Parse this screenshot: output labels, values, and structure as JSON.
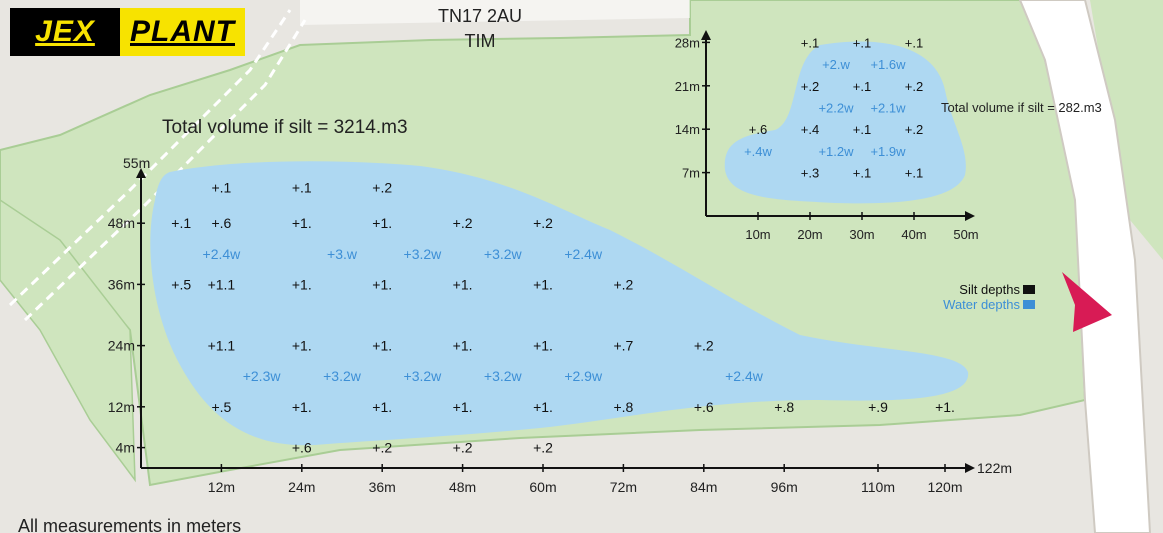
{
  "brand": {
    "part1": "JEX",
    "part2": "PLANT"
  },
  "header": {
    "postcode": "TN17 2AU",
    "name": "TIM"
  },
  "pond_large": {
    "volume_label": "Total volume if silt = 3214.m3",
    "x_axis": {
      "end_label": "122m",
      "ticks": [
        "12m",
        "24m",
        "36m",
        "48m",
        "60m",
        "72m",
        "84m",
        "96m",
        "110m",
        "120m"
      ],
      "values": [
        12,
        24,
        36,
        48,
        60,
        72,
        84,
        96,
        110,
        120
      ]
    },
    "y_axis": {
      "end_label": "55m",
      "ticks": [
        "4m",
        "12m",
        "24m",
        "36m",
        "48m"
      ],
      "values": [
        4,
        12,
        24,
        36,
        48
      ]
    },
    "silt": [
      {
        "x": 12,
        "y": 55,
        "t": "+.1"
      },
      {
        "x": 24,
        "y": 55,
        "t": "+.1"
      },
      {
        "x": 36,
        "y": 55,
        "t": "+.2"
      },
      {
        "x": 6,
        "y": 48,
        "t": "+.1"
      },
      {
        "x": 12,
        "y": 48,
        "t": "+.6"
      },
      {
        "x": 24,
        "y": 48,
        "t": "+1."
      },
      {
        "x": 36,
        "y": 48,
        "t": "+1."
      },
      {
        "x": 48,
        "y": 48,
        "t": "+.2"
      },
      {
        "x": 60,
        "y": 48,
        "t": "+.2"
      },
      {
        "x": 6,
        "y": 36,
        "t": "+.5"
      },
      {
        "x": 12,
        "y": 36,
        "t": "+1.1"
      },
      {
        "x": 24,
        "y": 36,
        "t": "+1."
      },
      {
        "x": 36,
        "y": 36,
        "t": "+1."
      },
      {
        "x": 48,
        "y": 36,
        "t": "+1."
      },
      {
        "x": 60,
        "y": 36,
        "t": "+1."
      },
      {
        "x": 72,
        "y": 36,
        "t": "+.2"
      },
      {
        "x": 12,
        "y": 24,
        "t": "+1.1"
      },
      {
        "x": 24,
        "y": 24,
        "t": "+1."
      },
      {
        "x": 36,
        "y": 24,
        "t": "+1."
      },
      {
        "x": 48,
        "y": 24,
        "t": "+1."
      },
      {
        "x": 60,
        "y": 24,
        "t": "+1."
      },
      {
        "x": 72,
        "y": 24,
        "t": "+.7"
      },
      {
        "x": 84,
        "y": 24,
        "t": "+.2"
      },
      {
        "x": 12,
        "y": 12,
        "t": "+.5"
      },
      {
        "x": 24,
        "y": 12,
        "t": "+1."
      },
      {
        "x": 36,
        "y": 12,
        "t": "+1."
      },
      {
        "x": 48,
        "y": 12,
        "t": "+1."
      },
      {
        "x": 60,
        "y": 12,
        "t": "+1."
      },
      {
        "x": 72,
        "y": 12,
        "t": "+.8"
      },
      {
        "x": 84,
        "y": 12,
        "t": "+.6"
      },
      {
        "x": 96,
        "y": 12,
        "t": "+.8"
      },
      {
        "x": 110,
        "y": 12,
        "t": "+.9"
      },
      {
        "x": 120,
        "y": 12,
        "t": "+1."
      },
      {
        "x": 24,
        "y": 4,
        "t": "+.6"
      },
      {
        "x": 36,
        "y": 4,
        "t": "+.2"
      },
      {
        "x": 48,
        "y": 4,
        "t": "+.2"
      },
      {
        "x": 60,
        "y": 4,
        "t": "+.2"
      }
    ],
    "water": [
      {
        "x": 12,
        "y": 42,
        "t": "+2.4w"
      },
      {
        "x": 30,
        "y": 42,
        "t": "+3.w"
      },
      {
        "x": 42,
        "y": 42,
        "t": "+3.2w"
      },
      {
        "x": 54,
        "y": 42,
        "t": "+3.2w"
      },
      {
        "x": 66,
        "y": 42,
        "t": "+2.4w"
      },
      {
        "x": 18,
        "y": 18,
        "t": "+2.3w"
      },
      {
        "x": 30,
        "y": 18,
        "t": "+3.2w"
      },
      {
        "x": 42,
        "y": 18,
        "t": "+3.2w"
      },
      {
        "x": 54,
        "y": 18,
        "t": "+3.2w"
      },
      {
        "x": 66,
        "y": 18,
        "t": "+2.9w"
      },
      {
        "x": 90,
        "y": 18,
        "t": "+2.4w"
      }
    ]
  },
  "pond_small": {
    "volume_label": "Total volume if silt = 282.m3",
    "x_axis": {
      "ticks": [
        "10m",
        "20m",
        "30m",
        "40m",
        "50m"
      ],
      "values": [
        10,
        20,
        30,
        40,
        50
      ]
    },
    "y_axis": {
      "ticks": [
        "7m",
        "14m",
        "21m",
        "28m"
      ],
      "values": [
        7,
        14,
        21,
        28
      ]
    },
    "silt": [
      {
        "x": 20,
        "y": 28,
        "t": "+.1"
      },
      {
        "x": 30,
        "y": 28,
        "t": "+.1"
      },
      {
        "x": 40,
        "y": 28,
        "t": "+.1"
      },
      {
        "x": 20,
        "y": 21,
        "t": "+.2"
      },
      {
        "x": 30,
        "y": 21,
        "t": "+.1"
      },
      {
        "x": 40,
        "y": 21,
        "t": "+.2"
      },
      {
        "x": 10,
        "y": 14,
        "t": "+.6"
      },
      {
        "x": 20,
        "y": 14,
        "t": "+.4"
      },
      {
        "x": 30,
        "y": 14,
        "t": "+.1"
      },
      {
        "x": 40,
        "y": 14,
        "t": "+.2"
      },
      {
        "x": 20,
        "y": 7,
        "t": "+.3"
      },
      {
        "x": 30,
        "y": 7,
        "t": "+.1"
      },
      {
        "x": 40,
        "y": 7,
        "t": "+.1"
      }
    ],
    "water": [
      {
        "x": 25,
        "y": 24.5,
        "t": "+2.w"
      },
      {
        "x": 35,
        "y": 24.5,
        "t": "+1.6w"
      },
      {
        "x": 25,
        "y": 17.5,
        "t": "+2.2w"
      },
      {
        "x": 35,
        "y": 17.5,
        "t": "+2.1w"
      },
      {
        "x": 10,
        "y": 10.5,
        "t": "+.4w"
      },
      {
        "x": 25,
        "y": 10.5,
        "t": "+1.2w"
      },
      {
        "x": 35,
        "y": 10.5,
        "t": "+1.9w"
      }
    ]
  },
  "legend": {
    "silt_label": "Silt depths",
    "water_label": "Water depths",
    "silt_color": "#111111",
    "water_color": "#3d8fd6"
  },
  "footer": "All measurements in meters",
  "colors": {
    "land": "#e8e6e1",
    "grass": "#cfe5be",
    "grass_edge": "#a9cd95",
    "water": "#aed8f2",
    "pointer": "#d81b55",
    "road": "#ffffff"
  }
}
